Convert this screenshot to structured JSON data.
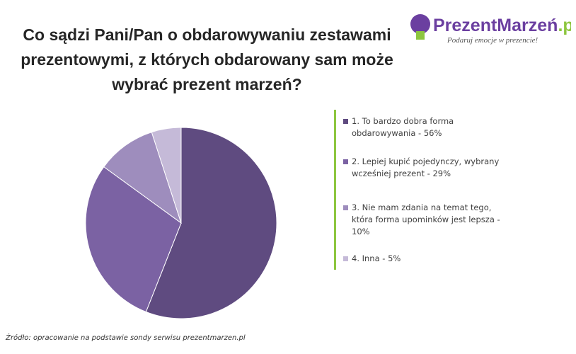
{
  "chart_data": {
    "type": "pie",
    "title": "Co sądzi Pani/Pan o obdarowywaniu zestawami prezentowymi, z których obdarowany sam może wybrać prezent marzeń?",
    "categories": [
      "1. To bardzo dobra forma obdarowywania - 56%",
      "2. Lepiej kupić pojedynczy, wybrany wcześniej prezent - 29%",
      "3. Nie mam zdania na temat tego, która forma upominków jest lepsza - 10%",
      "4. Inna - 5%"
    ],
    "values": [
      56,
      29,
      10,
      5
    ],
    "colors": [
      "#5f4b80",
      "#7b62a3",
      "#9e8dbd",
      "#c5bad8"
    ],
    "legend": "right",
    "source": "Źródło: opracowanie na podstawie sondy serwisu prezentmarzen.pl"
  },
  "logo": {
    "name": "PrezentMarzeń",
    "tld": ".pl",
    "tagline": "Podaruj emocje w prezencie!"
  }
}
